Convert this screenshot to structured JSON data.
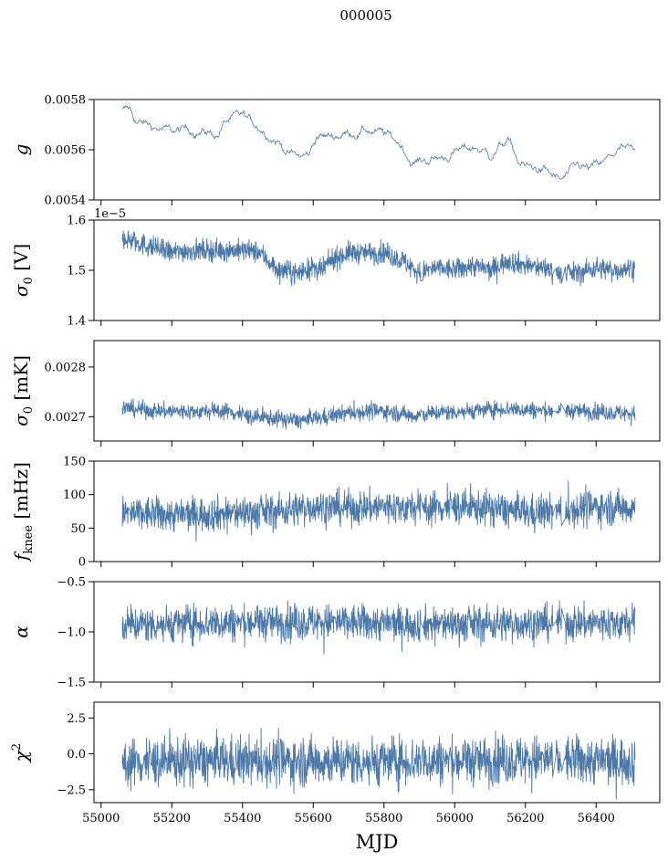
{
  "figure": {
    "title": "000005",
    "xlabel": "MJD",
    "line_color": "#4c78a8"
  },
  "chart_data": [
    {
      "type": "line",
      "name": "gain",
      "ylabel": "g",
      "ylim": [
        0.0054,
        0.0058
      ],
      "yticks": [
        0.0054,
        0.0056,
        0.0058
      ],
      "ytick_labels": [
        "0.0054",
        "0.0056",
        "0.0058"
      ],
      "offset_label": "",
      "noisy": false,
      "anchors": {
        "x": [
          55060,
          55080,
          55100,
          55150,
          55200,
          55260,
          55300,
          55330,
          55350,
          55400,
          55420,
          55450,
          55500,
          55530,
          55560,
          55590,
          55610,
          55640,
          55700,
          55750,
          55800,
          55850,
          55880,
          55920,
          55970,
          56000,
          56060,
          56100,
          56150,
          56180,
          56200,
          56250,
          56290,
          56300,
          56350,
          56380,
          56420,
          56450,
          56470,
          56500,
          56510
        ],
        "y": [
          0.005755,
          0.00576,
          0.00571,
          0.00569,
          0.00567,
          0.00568,
          0.00567,
          0.00566,
          0.00571,
          0.00573,
          0.00571,
          0.00569,
          0.00564,
          0.00559,
          0.00557,
          0.00558,
          0.00566,
          0.00565,
          0.00567,
          0.00568,
          0.00566,
          0.00562,
          0.00555,
          0.00556,
          0.00557,
          0.00559,
          0.00561,
          0.00558,
          0.00564,
          0.00555,
          0.00553,
          0.00552,
          0.00548,
          0.00547,
          0.00553,
          0.00552,
          0.00554,
          0.00558,
          0.0056,
          0.00559,
          0.00557
        ]
      },
      "noise": 1.2e-05
    },
    {
      "type": "line",
      "name": "sigma0-volts",
      "ylabel": "σ",
      "ylabel_sub": "0",
      "ylabel_unit": " [V]",
      "ylim": [
        1.4,
        1.6
      ],
      "yticks": [
        1.4,
        1.5,
        1.6
      ],
      "ytick_labels": [
        "1.4",
        "1.5",
        "1.6"
      ],
      "offset_label": "1e−5",
      "noisy": true,
      "anchors": {
        "x": [
          55060,
          55100,
          55150,
          55200,
          55250,
          55300,
          55350,
          55400,
          55450,
          55500,
          55550,
          55600,
          55620,
          55650,
          55700,
          55750,
          55800,
          55850,
          55880,
          55900,
          55950,
          56000,
          56050,
          56100,
          56150,
          56200,
          56250,
          56300,
          56350,
          56400,
          56450,
          56500,
          56510
        ],
        "y": [
          1.565,
          1.555,
          1.545,
          1.535,
          1.54,
          1.54,
          1.54,
          1.54,
          1.535,
          1.5,
          1.495,
          1.505,
          1.495,
          1.52,
          1.535,
          1.535,
          1.535,
          1.52,
          1.505,
          1.495,
          1.505,
          1.5,
          1.51,
          1.5,
          1.52,
          1.51,
          1.505,
          1.495,
          1.495,
          1.505,
          1.5,
          1.505,
          1.505
        ]
      },
      "noise": 0.011,
      "spikes": 0.008
    },
    {
      "type": "line",
      "name": "sigma0-mk",
      "ylabel": "σ",
      "ylabel_sub": "0",
      "ylabel_unit": " [mK]",
      "ylim": [
        0.002651,
        0.002853
      ],
      "yticks": [
        0.0027,
        0.0028
      ],
      "ytick_labels": [
        "0.0027",
        "0.0028"
      ],
      "offset_label": "",
      "noisy": true,
      "anchors": {
        "x": [
          55060,
          55150,
          55250,
          55350,
          55420,
          55500,
          55560,
          55620,
          55700,
          55800,
          55880,
          55950,
          56050,
          56150,
          56250,
          56350,
          56450,
          56510
        ],
        "y": [
          0.002718,
          0.002712,
          0.00271,
          0.002712,
          0.0027,
          0.002696,
          0.002692,
          0.002698,
          0.002708,
          0.002712,
          0.002702,
          0.002708,
          0.002712,
          0.002716,
          0.002712,
          0.002712,
          0.002708,
          0.002706
        ]
      },
      "noise": 8.5e-06,
      "spikes": 1.2e-05
    },
    {
      "type": "line",
      "name": "f-knee",
      "ylabel": "f",
      "ylabel_sub": "knee",
      "ylabel_unit": " [mHz]",
      "ylim": [
        0,
        150
      ],
      "yticks": [
        0,
        50,
        100,
        150
      ],
      "ytick_labels": [
        "0",
        "50",
        "100",
        "150"
      ],
      "offset_label": "",
      "noisy": true,
      "anchors": {
        "x": [
          55060,
          55200,
          55350,
          55500,
          55600,
          55700,
          55800,
          55900,
          56000,
          56100,
          56200,
          56300,
          56400,
          56510
        ],
        "y": [
          72,
          70,
          72,
          75,
          82,
          80,
          82,
          80,
          82,
          80,
          73,
          75,
          82,
          80
        ]
      },
      "noise": 13,
      "spikes": 25
    },
    {
      "type": "line",
      "name": "alpha",
      "ylabel": "α",
      "ylim": [
        -1.5,
        -0.5
      ],
      "yticks": [
        -1.5,
        -1.0,
        -0.5
      ],
      "ytick_labels": [
        "−1.5",
        "−1.0",
        "−0.5"
      ],
      "offset_label": "",
      "noisy": true,
      "anchors": {
        "x": [
          55060,
          55300,
          55600,
          55900,
          56100,
          56300,
          56510
        ],
        "y": [
          -0.93,
          -0.91,
          -0.9,
          -0.92,
          -0.92,
          -0.91,
          -0.91
        ]
      },
      "noise": 0.09,
      "spikes": 0.18
    },
    {
      "type": "line",
      "name": "chi-squared",
      "ylabel": "χ",
      "ylabel_sup": "2",
      "ylim": [
        -3.4,
        3.6
      ],
      "yticks": [
        -2.5,
        0.0,
        2.5
      ],
      "ytick_labels": [
        "−2.5",
        "0.0",
        "2.5"
      ],
      "offset_label": "",
      "noisy": true,
      "anchors": {
        "x": [
          55060,
          55300,
          55600,
          55900,
          56200,
          56510
        ],
        "y": [
          -0.6,
          -0.5,
          -0.5,
          -0.5,
          -0.4,
          -0.5
        ]
      },
      "noise": 0.85,
      "spikes": 1.0
    }
  ],
  "xaxis": {
    "xlim": [
      54980,
      56580
    ],
    "xticks": [
      55000,
      55200,
      55400,
      55600,
      55800,
      56000,
      56200,
      56400
    ],
    "xtick_labels": [
      "55000",
      "55200",
      "55400",
      "55600",
      "55800",
      "56000",
      "56200",
      "56400"
    ],
    "data_range": [
      55060,
      56510
    ],
    "gaps": [
      [
        55904,
        55910
      ],
      [
        56278,
        56286
      ],
      [
        56303,
        56312
      ]
    ]
  }
}
